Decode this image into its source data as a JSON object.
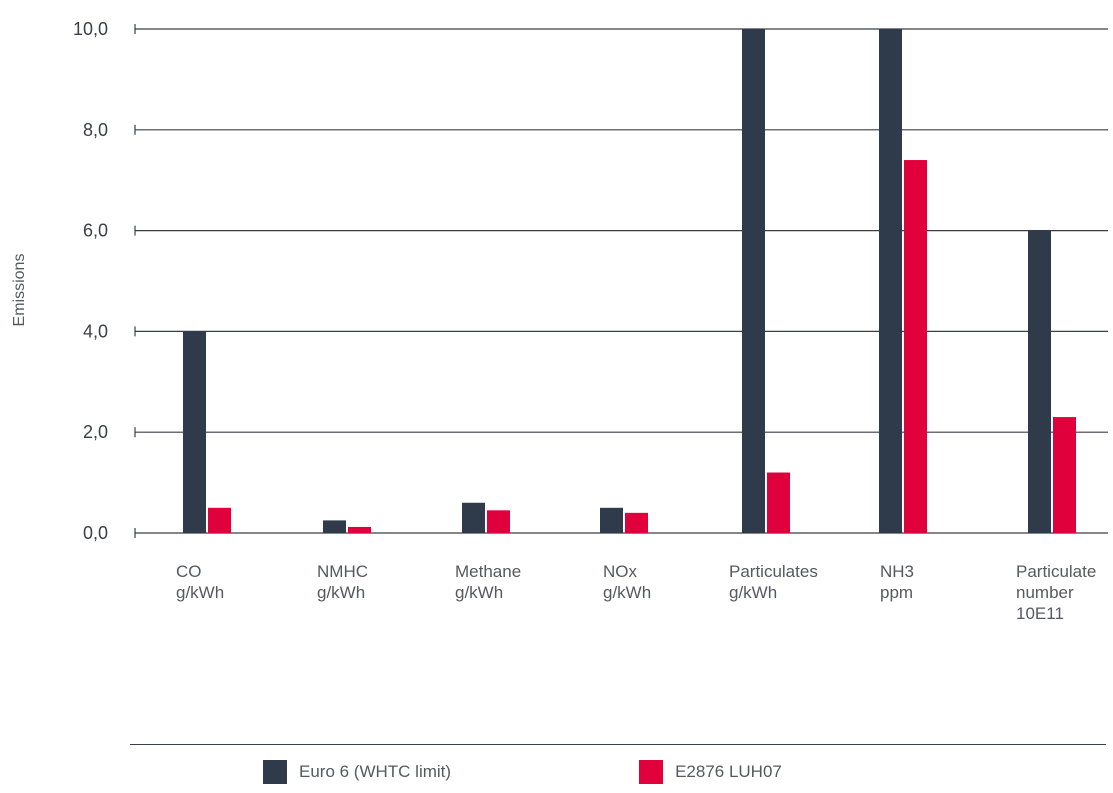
{
  "chart_data": {
    "type": "bar",
    "ylabel": "Emissions",
    "ylim": [
      0,
      10
    ],
    "yticks": [
      "0,0",
      "2,0",
      "4,0",
      "6,0",
      "8,0",
      "10,0"
    ],
    "ytick_values": [
      0,
      2,
      4,
      6,
      8,
      10
    ],
    "grid": true,
    "legend_position": "bottom",
    "categories": [
      [
        "CO",
        "g/kWh"
      ],
      [
        "NMHC",
        "g/kWh"
      ],
      [
        "Methane",
        "g/kWh"
      ],
      [
        "NOx",
        "g/kWh"
      ],
      [
        "Particulates",
        "g/kWh"
      ],
      [
        "NH3",
        "ppm"
      ],
      [
        "Particulate",
        "number",
        "10E11"
      ]
    ],
    "series": [
      {
        "name": "Euro 6 (WHTC limit)",
        "color": "#2f3a4a",
        "values": [
          4.0,
          0.25,
          0.6,
          0.5,
          10.0,
          10.0,
          6.0
        ]
      },
      {
        "name": "E2876 LUH07",
        "color": "#e0003c",
        "values": [
          0.5,
          0.12,
          0.45,
          0.4,
          1.2,
          7.4,
          2.3
        ]
      }
    ]
  }
}
